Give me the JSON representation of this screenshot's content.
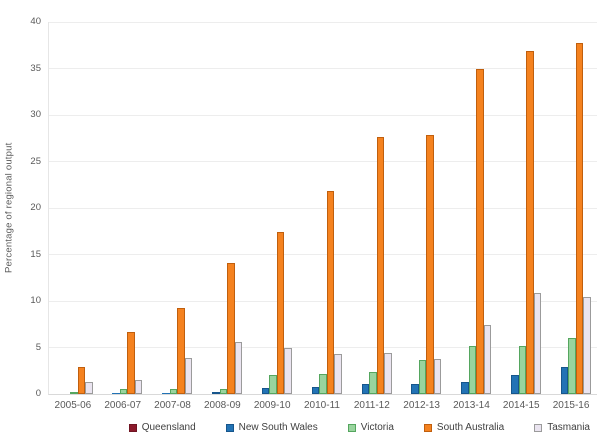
{
  "chart_data": {
    "type": "bar",
    "title": "",
    "xlabel": "",
    "ylabel": "Percentage of regional output",
    "ylim": [
      0,
      40
    ],
    "yticks": [
      0,
      5,
      10,
      15,
      20,
      25,
      30,
      35,
      40
    ],
    "grid": true,
    "legend_position": "bottom",
    "categories": [
      "2005-06",
      "2006-07",
      "2007-08",
      "2008-09",
      "2009-10",
      "2010-11",
      "2011-12",
      "2012-13",
      "2013-14",
      "2014-15",
      "2015-16"
    ],
    "series": [
      {
        "name": "Queensland",
        "color": "#8B1A2B",
        "border": "#701523",
        "values": [
          0,
          0,
          0,
          0,
          0,
          0,
          0,
          0,
          0,
          0,
          0
        ]
      },
      {
        "name": "New South Wales",
        "color": "#2273B5",
        "border": "#17568C",
        "values": [
          0,
          0.1,
          0.1,
          0.2,
          0.6,
          0.8,
          1.1,
          1.1,
          1.3,
          2.0,
          2.9
        ]
      },
      {
        "name": "Victoria",
        "color": "#99D49E",
        "border": "#55A65F",
        "values": [
          0.2,
          0.5,
          0.5,
          0.5,
          2.0,
          2.1,
          2.4,
          3.7,
          5.2,
          5.2,
          6.0
        ]
      },
      {
        "name": "South Australia",
        "color": "#F5821F",
        "border": "#C05F0E",
        "values": [
          2.9,
          6.7,
          9.2,
          14.1,
          17.4,
          21.8,
          27.6,
          27.9,
          34.9,
          36.9,
          37.7
        ]
      },
      {
        "name": "Tasmania",
        "color": "#EAE4F0",
        "border": "#9B9B9B",
        "values": [
          1.3,
          1.5,
          3.9,
          5.6,
          4.9,
          4.3,
          4.4,
          3.8,
          7.4,
          10.9,
          10.4
        ]
      }
    ]
  }
}
